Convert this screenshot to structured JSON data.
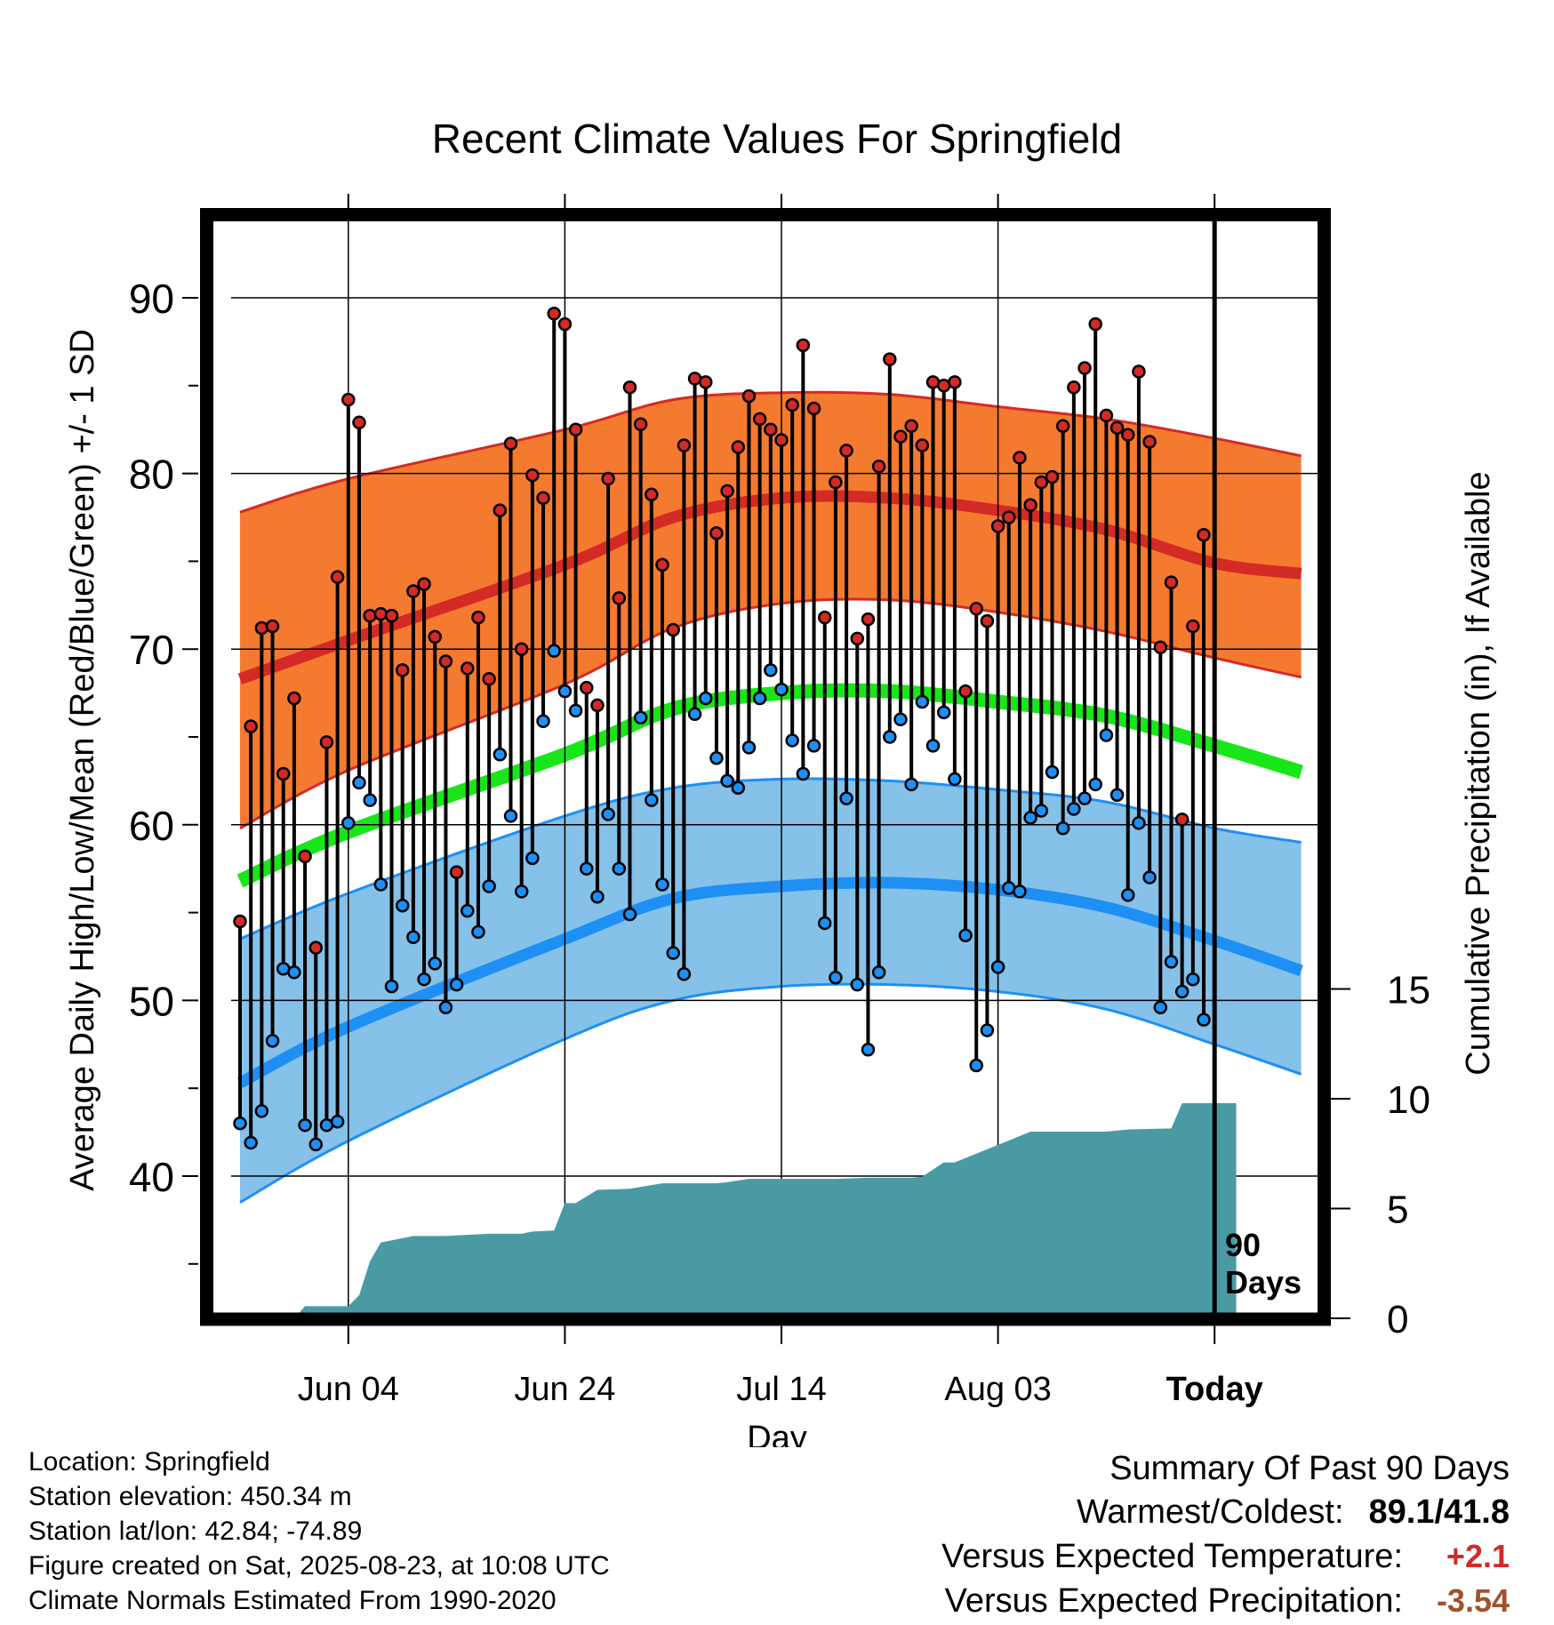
{
  "chart_data": {
    "type": "line",
    "title": "Recent Climate Values For Springfield",
    "xlabel": "Day",
    "ylabel": "Average Daily High/Low/Mean (Red/Blue/Green) +/- 1 SD",
    "y2label": "Cumulative Precipitation (in), If Available",
    "x_tick_labels": [
      "Jun 04",
      "Jun 24",
      "Jul 14",
      "Aug 03",
      "Today"
    ],
    "y_ticks": [
      40,
      50,
      60,
      70,
      80,
      90
    ],
    "y2_ticks": [
      0,
      5,
      10,
      15
    ],
    "ylim": [
      32,
      95
    ],
    "y2lim": [
      0,
      35
    ],
    "today_marker_label": [
      "90",
      "Days"
    ],
    "grid": true,
    "colors": {
      "high_band": "#f47a30",
      "high_line": "#d42a25",
      "mean_line": "#19e619",
      "low_band": "#85c1e8",
      "low_line": "#1e8ff5",
      "band_edge_high": "#d42a25",
      "band_edge_low": "#1e8ff5",
      "precip": "#4a9aa4",
      "high_dot": "#d42a25",
      "low_dot": "#1e8ff5"
    },
    "normals": {
      "x": [
        "May 25",
        "Jun 04",
        "Jun 24",
        "Jul 04",
        "Jul 14",
        "Jul 24",
        "Aug 03",
        "Aug 13",
        "Aug 23",
        "Aug 31"
      ],
      "high_mean": [
        68.3,
        70.5,
        74.8,
        77.5,
        78.6,
        78.6,
        77.9,
        76.8,
        74.9,
        74.3
      ],
      "high_upper": [
        77.8,
        79.7,
        82.5,
        84.2,
        84.6,
        84.5,
        83.8,
        83.1,
        82.0,
        81.0
      ],
      "high_lower": [
        59.8,
        63.1,
        68.0,
        71.2,
        72.6,
        72.8,
        72.1,
        71.0,
        69.5,
        68.4
      ],
      "mean": [
        56.8,
        59.6,
        64.0,
        66.6,
        67.5,
        67.6,
        67.0,
        66.2,
        64.5,
        63.0
      ],
      "low_mean": [
        45.3,
        48.5,
        53.5,
        55.8,
        56.5,
        56.7,
        56.3,
        55.3,
        53.4,
        51.7
      ],
      "low_upper": [
        53.5,
        56.1,
        60.5,
        62.1,
        62.6,
        62.5,
        62.0,
        61.3,
        59.8,
        59.0
      ],
      "low_lower": [
        38.5,
        42.0,
        47.8,
        50.0,
        50.8,
        50.9,
        50.5,
        49.5,
        47.5,
        45.8
      ]
    },
    "daily": {
      "x_start": "May 25",
      "highs": [
        54.5,
        65.6,
        71.2,
        71.3,
        62.9,
        67.2,
        58.2,
        53.0,
        64.7,
        74.1,
        84.2,
        82.9,
        71.9,
        72.0,
        71.9,
        68.8,
        73.3,
        73.7,
        70.7,
        69.3,
        57.3,
        68.9,
        71.8,
        68.3,
        77.9,
        81.7,
        70.0,
        79.9,
        78.6,
        89.1,
        88.5,
        82.5,
        67.8,
        66.8,
        79.7,
        72.9,
        84.9,
        82.8,
        78.8,
        74.8,
        71.1,
        81.6,
        85.4,
        85.2,
        76.6,
        79.0,
        81.5,
        84.4,
        83.1,
        82.5,
        81.9,
        83.9,
        87.3,
        83.7,
        71.8,
        79.5,
        81.3,
        70.6,
        71.7,
        80.4,
        86.5,
        82.1,
        82.7,
        81.6,
        85.2,
        85.0,
        85.2,
        67.6,
        72.3,
        71.6,
        77.0,
        77.5,
        80.9,
        78.2,
        79.5,
        79.8,
        82.7,
        84.9,
        86.0,
        88.5,
        83.3,
        82.6,
        82.2,
        85.8,
        81.8,
        70.1,
        73.8,
        60.3,
        71.3,
        76.5
      ],
      "lows": [
        43.0,
        41.9,
        43.7,
        47.7,
        51.8,
        51.6,
        42.9,
        41.8,
        42.9,
        43.1,
        60.1,
        62.4,
        61.4,
        56.6,
        50.8,
        55.4,
        53.6,
        51.2,
        52.1,
        49.6,
        50.9,
        55.1,
        53.9,
        56.5,
        64.0,
        60.5,
        56.2,
        58.1,
        65.9,
        69.9,
        67.6,
        66.5,
        57.5,
        55.9,
        60.6,
        57.5,
        54.9,
        66.1,
        61.4,
        56.6,
        52.7,
        51.5,
        66.3,
        67.2,
        63.8,
        62.5,
        62.1,
        64.4,
        67.2,
        68.8,
        67.7,
        64.8,
        62.9,
        64.5,
        54.4,
        51.3,
        61.5,
        50.9,
        47.2,
        51.6,
        65.0,
        66.0,
        62.3,
        67.0,
        64.5,
        66.4,
        62.6,
        53.7,
        46.3,
        48.3,
        51.9,
        56.4,
        56.2,
        60.4,
        60.8,
        63.0,
        59.8,
        60.9,
        61.5,
        62.3,
        65.1,
        61.7,
        56.0,
        60.1,
        57.0,
        49.6,
        52.2,
        50.5,
        51.2,
        48.9
      ]
    },
    "precip_cumulative": {
      "x_days": [
        5,
        6,
        10,
        11,
        12,
        13,
        16,
        19,
        23,
        26,
        27,
        29,
        30,
        31,
        33,
        36,
        39,
        44,
        45,
        47,
        48,
        55,
        58,
        59,
        60,
        62,
        63,
        65,
        66,
        73,
        76,
        79,
        80,
        82,
        86,
        87,
        88,
        89,
        92
      ],
      "values": [
        0.0,
        0.55,
        0.55,
        1.05,
        2.6,
        3.45,
        3.75,
        3.75,
        3.85,
        3.85,
        3.95,
        4.0,
        5.25,
        5.25,
        5.85,
        5.9,
        6.15,
        6.15,
        6.2,
        6.35,
        6.35,
        6.35,
        6.4,
        6.4,
        6.4,
        6.4,
        6.45,
        7.1,
        7.1,
        8.5,
        8.5,
        8.5,
        8.5,
        8.6,
        8.65,
        9.8,
        9.8,
        9.8,
        9.8
      ]
    }
  },
  "info": {
    "location": "Location: Springfield",
    "elevation": "Station elevation: 450.34 m",
    "latlon": "Station lat/lon: 42.84; -74.89",
    "created": "Figure created on Sat, 2025-08-23, at 10:08 UTC",
    "normals": "Climate Normals Estimated From 1990-2020"
  },
  "summary": {
    "title": "Summary Of Past 90 Days",
    "warm_cold_label": "Warmest/Coldest:",
    "warm_cold_value": "89.1/41.8",
    "temp_label": "Versus Expected Temperature:",
    "temp_value": "+2.1",
    "temp_color": "#d42a25",
    "precip_label": "Versus Expected Precipitation:",
    "precip_value": "-3.54",
    "precip_color": "#a0522d"
  }
}
